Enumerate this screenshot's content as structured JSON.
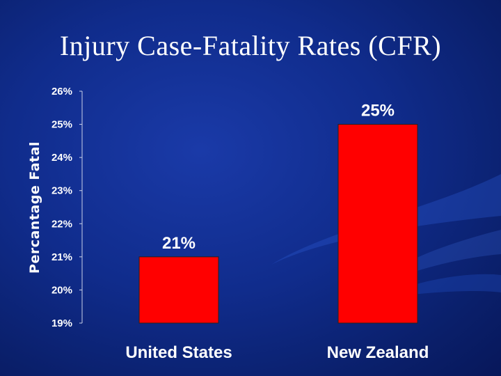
{
  "slide": {
    "title": "Injury Case-Fatality Rates (CFR)"
  },
  "colors": {
    "background": "#102c8c",
    "bar": "#ff0000",
    "text": "#ffffff"
  },
  "chart_data": {
    "type": "bar",
    "title": "",
    "xlabel": "",
    "ylabel": "Percantage Fatal",
    "categories": [
      "United States",
      "New Zealand"
    ],
    "values": [
      21,
      25
    ],
    "value_labels": [
      "21%",
      "25%"
    ],
    "ylim": [
      19,
      26
    ],
    "yticks": [
      19,
      20,
      21,
      22,
      23,
      24,
      25,
      26
    ],
    "ytick_labels": [
      "19%",
      "20%",
      "21%",
      "22%",
      "23%",
      "24%",
      "25%",
      "26%"
    ],
    "grid": false,
    "legend": "none"
  }
}
